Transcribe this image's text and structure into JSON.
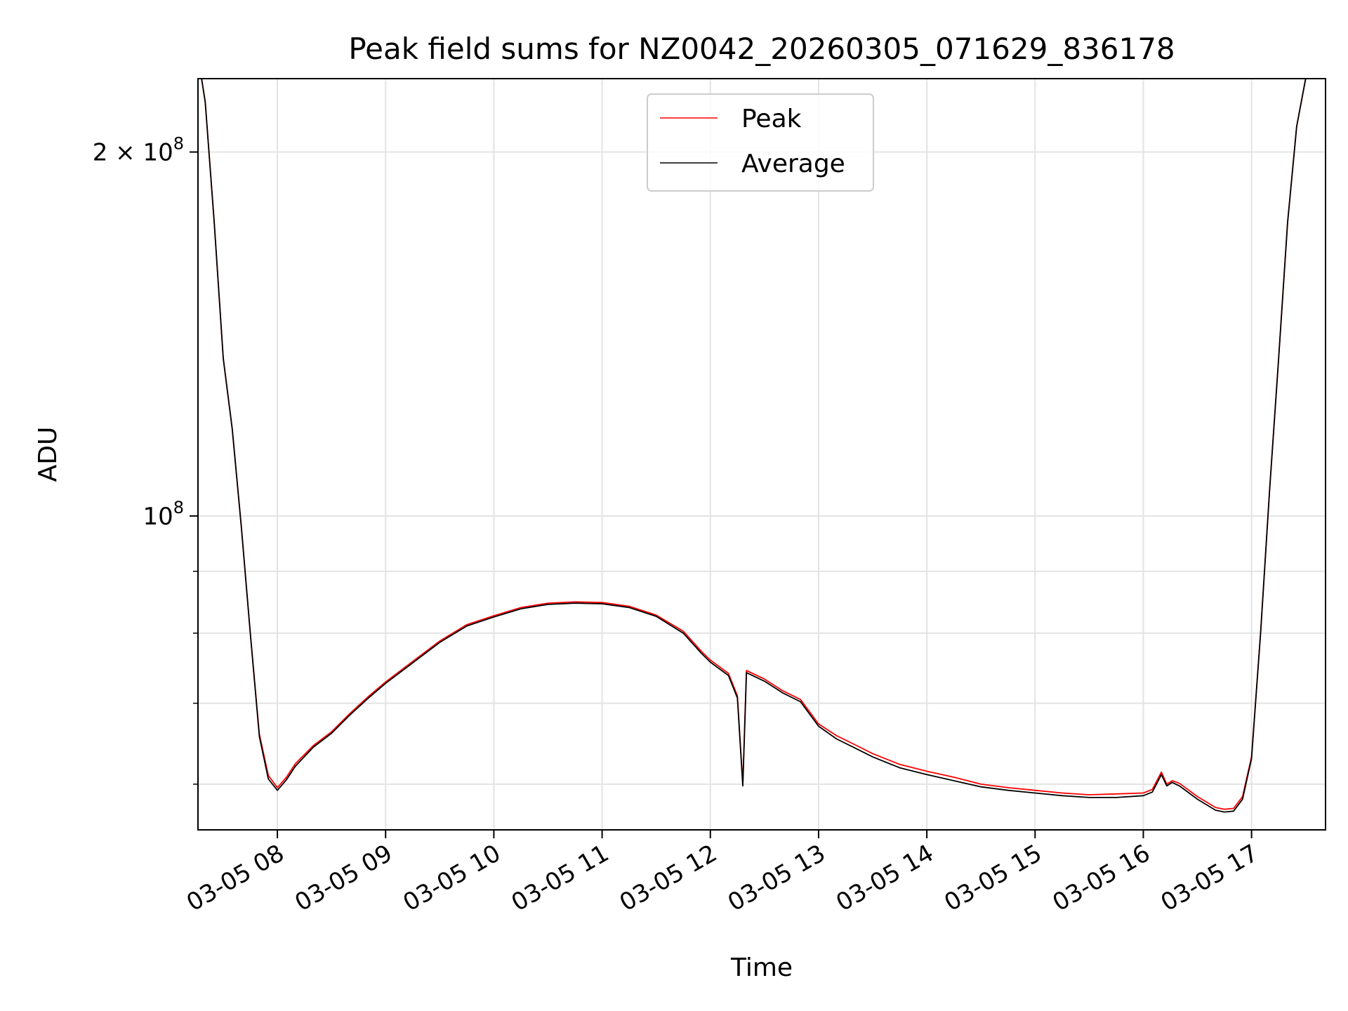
{
  "chart_data": {
    "type": "line",
    "title": "Peak field sums for NZ0042_20260305_071629_836178",
    "xlabel": "Time",
    "ylabel": "ADU",
    "y_scale": "log",
    "x_range": [
      "03-05 07:16",
      "03-05 17:41"
    ],
    "ylim": [
      55000000,
      230000000
    ],
    "x_ticks": [
      {
        "t": "03-05 08:00",
        "label": "03-05 08"
      },
      {
        "t": "03-05 09:00",
        "label": "03-05 09"
      },
      {
        "t": "03-05 10:00",
        "label": "03-05 10"
      },
      {
        "t": "03-05 11:00",
        "label": "03-05 11"
      },
      {
        "t": "03-05 12:00",
        "label": "03-05 12"
      },
      {
        "t": "03-05 13:00",
        "label": "03-05 13"
      },
      {
        "t": "03-05 14:00",
        "label": "03-05 14"
      },
      {
        "t": "03-05 15:00",
        "label": "03-05 15"
      },
      {
        "t": "03-05 16:00",
        "label": "03-05 16"
      },
      {
        "t": "03-05 17:00",
        "label": "03-05 17"
      }
    ],
    "y_ticks_major": [
      {
        "value": 200000000,
        "label": "2 × 10^8"
      },
      {
        "value": 100000000,
        "label": "10^8"
      }
    ],
    "y_ticks_minor": [
      60000000,
      70000000,
      80000000,
      90000000
    ],
    "grid": true,
    "legend_position": "upper-center",
    "series": [
      {
        "name": "Peak",
        "color": "#ff0000",
        "points": [
          [
            "03-05 07:16",
            230000000
          ],
          [
            "03-05 07:18",
            230000000
          ],
          [
            "03-05 07:20",
            220000000
          ],
          [
            "03-05 07:25",
            175000000
          ],
          [
            "03-05 07:30",
            135000000
          ],
          [
            "03-05 07:35",
            118000000
          ],
          [
            "03-05 07:40",
            98000000
          ],
          [
            "03-05 07:45",
            80000000
          ],
          [
            "03-05 07:50",
            66000000
          ],
          [
            "03-05 07:55",
            61000000
          ],
          [
            "03-05 08:00",
            59600000
          ],
          [
            "03-05 08:05",
            60800000
          ],
          [
            "03-05 08:10",
            62400000
          ],
          [
            "03-05 08:20",
            64600000
          ],
          [
            "03-05 08:30",
            66300000
          ],
          [
            "03-05 08:40",
            68600000
          ],
          [
            "03-05 08:50",
            70800000
          ],
          [
            "03-05 09:00",
            72900000
          ],
          [
            "03-05 09:15",
            75800000
          ],
          [
            "03-05 09:30",
            78800000
          ],
          [
            "03-05 09:45",
            81300000
          ],
          [
            "03-05 10:00",
            82700000
          ],
          [
            "03-05 10:15",
            84000000
          ],
          [
            "03-05 10:30",
            84700000
          ],
          [
            "03-05 10:45",
            84900000
          ],
          [
            "03-05 11:00",
            84800000
          ],
          [
            "03-05 11:15",
            84200000
          ],
          [
            "03-05 11:30",
            82800000
          ],
          [
            "03-05 11:45",
            80300000
          ],
          [
            "03-05 11:55",
            77300000
          ],
          [
            "03-05 12:00",
            76000000
          ],
          [
            "03-05 12:10",
            74100000
          ],
          [
            "03-05 12:15",
            71000000
          ],
          [
            "03-05 12:18",
            60000000
          ],
          [
            "03-05 12:20",
            74500000
          ],
          [
            "03-05 12:30",
            73300000
          ],
          [
            "03-05 12:40",
            71700000
          ],
          [
            "03-05 12:50",
            70500000
          ],
          [
            "03-05 13:00",
            67300000
          ],
          [
            "03-05 13:10",
            65800000
          ],
          [
            "03-05 13:20",
            64700000
          ],
          [
            "03-05 13:30",
            63600000
          ],
          [
            "03-05 13:45",
            62300000
          ],
          [
            "03-05 14:00",
            61500000
          ],
          [
            "03-05 14:15",
            60800000
          ],
          [
            "03-05 14:30",
            60000000
          ],
          [
            "03-05 14:45",
            59600000
          ],
          [
            "03-05 15:00",
            59300000
          ],
          [
            "03-05 15:15",
            59000000
          ],
          [
            "03-05 15:30",
            58800000
          ],
          [
            "03-05 15:45",
            58900000
          ],
          [
            "03-05 16:00",
            59000000
          ],
          [
            "03-05 16:05",
            59400000
          ],
          [
            "03-05 16:10",
            61400000
          ],
          [
            "03-05 16:13",
            60000000
          ],
          [
            "03-05 16:16",
            60400000
          ],
          [
            "03-05 16:20",
            60100000
          ],
          [
            "03-05 16:30",
            58600000
          ],
          [
            "03-05 16:40",
            57400000
          ],
          [
            "03-05 16:45",
            57200000
          ],
          [
            "03-05 16:50",
            57300000
          ],
          [
            "03-05 16:55",
            58600000
          ],
          [
            "03-05 17:00",
            63200000
          ],
          [
            "03-05 17:05",
            80000000
          ],
          [
            "03-05 17:10",
            105000000
          ],
          [
            "03-05 17:15",
            135000000
          ],
          [
            "03-05 17:20",
            175000000
          ],
          [
            "03-05 17:25",
            210000000
          ],
          [
            "03-05 17:30",
            230000000
          ],
          [
            "03-05 17:41",
            230000000
          ]
        ]
      },
      {
        "name": "Average",
        "color": "#000000",
        "points": [
          [
            "03-05 07:16",
            230000000
          ],
          [
            "03-05 07:18",
            230000000
          ],
          [
            "03-05 07:20",
            220000000
          ],
          [
            "03-05 07:25",
            175000000
          ],
          [
            "03-05 07:30",
            135000000
          ],
          [
            "03-05 07:35",
            118000000
          ],
          [
            "03-05 07:40",
            98000000
          ],
          [
            "03-05 07:45",
            80000000
          ],
          [
            "03-05 07:50",
            65700000
          ],
          [
            "03-05 07:55",
            60600000
          ],
          [
            "03-05 08:00",
            59300000
          ],
          [
            "03-05 08:05",
            60500000
          ],
          [
            "03-05 08:10",
            62100000
          ],
          [
            "03-05 08:20",
            64400000
          ],
          [
            "03-05 08:30",
            66100000
          ],
          [
            "03-05 08:40",
            68400000
          ],
          [
            "03-05 08:50",
            70600000
          ],
          [
            "03-05 09:00",
            72700000
          ],
          [
            "03-05 09:15",
            75600000
          ],
          [
            "03-05 09:30",
            78600000
          ],
          [
            "03-05 09:45",
            81100000
          ],
          [
            "03-05 10:00",
            82500000
          ],
          [
            "03-05 10:15",
            83800000
          ],
          [
            "03-05 10:30",
            84500000
          ],
          [
            "03-05 10:45",
            84700000
          ],
          [
            "03-05 11:00",
            84600000
          ],
          [
            "03-05 11:15",
            84000000
          ],
          [
            "03-05 11:30",
            82600000
          ],
          [
            "03-05 11:45",
            80000000
          ],
          [
            "03-05 11:55",
            77000000
          ],
          [
            "03-05 12:00",
            75700000
          ],
          [
            "03-05 12:10",
            73800000
          ],
          [
            "03-05 12:15",
            70700000
          ],
          [
            "03-05 12:18",
            59800000
          ],
          [
            "03-05 12:20",
            74200000
          ],
          [
            "03-05 12:30",
            73000000
          ],
          [
            "03-05 12:40",
            71400000
          ],
          [
            "03-05 12:50",
            70200000
          ],
          [
            "03-05 13:00",
            67000000
          ],
          [
            "03-05 13:10",
            65400000
          ],
          [
            "03-05 13:20",
            64300000
          ],
          [
            "03-05 13:30",
            63200000
          ],
          [
            "03-05 13:45",
            61900000
          ],
          [
            "03-05 14:00",
            61100000
          ],
          [
            "03-05 14:15",
            60400000
          ],
          [
            "03-05 14:30",
            59700000
          ],
          [
            "03-05 14:45",
            59300000
          ],
          [
            "03-05 15:00",
            59000000
          ],
          [
            "03-05 15:15",
            58700000
          ],
          [
            "03-05 15:30",
            58500000
          ],
          [
            "03-05 15:45",
            58500000
          ],
          [
            "03-05 16:00",
            58700000
          ],
          [
            "03-05 16:05",
            59100000
          ],
          [
            "03-05 16:10",
            61100000
          ],
          [
            "03-05 16:13",
            59800000
          ],
          [
            "03-05 16:16",
            60200000
          ],
          [
            "03-05 16:20",
            59800000
          ],
          [
            "03-05 16:30",
            58300000
          ],
          [
            "03-05 16:40",
            57100000
          ],
          [
            "03-05 16:45",
            56900000
          ],
          [
            "03-05 16:50",
            57000000
          ],
          [
            "03-05 16:55",
            58300000
          ],
          [
            "03-05 17:00",
            63000000
          ],
          [
            "03-05 17:05",
            80000000
          ],
          [
            "03-05 17:10",
            105000000
          ],
          [
            "03-05 17:15",
            135000000
          ],
          [
            "03-05 17:20",
            175000000
          ],
          [
            "03-05 17:25",
            210000000
          ],
          [
            "03-05 17:30",
            230000000
          ],
          [
            "03-05 17:41",
            230000000
          ]
        ]
      }
    ]
  }
}
